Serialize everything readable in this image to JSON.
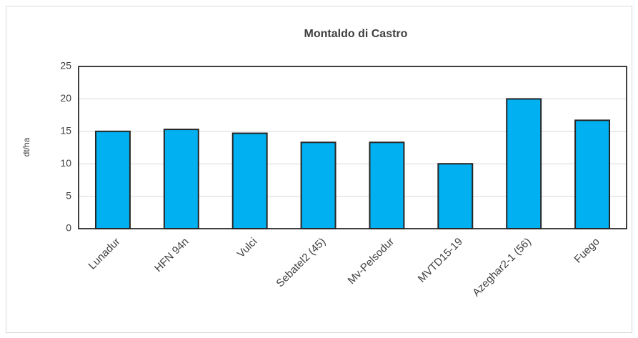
{
  "chart_data": {
    "type": "bar",
    "title": "Montaldo di Castro",
    "y_label": "dt/ha",
    "categories": [
      "Lunadur",
      "HFN 94n",
      "Vulci",
      "Sebatel2 (45)",
      "Mv-Pelsodur",
      "MVTD15-19",
      "Azeghar2-1 (56)",
      "Fuego"
    ],
    "values": [
      15,
      15.3,
      14.7,
      13.3,
      13.3,
      10,
      20,
      16.7
    ],
    "color": "#00b0f0",
    "ylim": [
      0,
      25
    ],
    "yticks": [
      0,
      5,
      10,
      15,
      20,
      25
    ],
    "grid": true
  }
}
